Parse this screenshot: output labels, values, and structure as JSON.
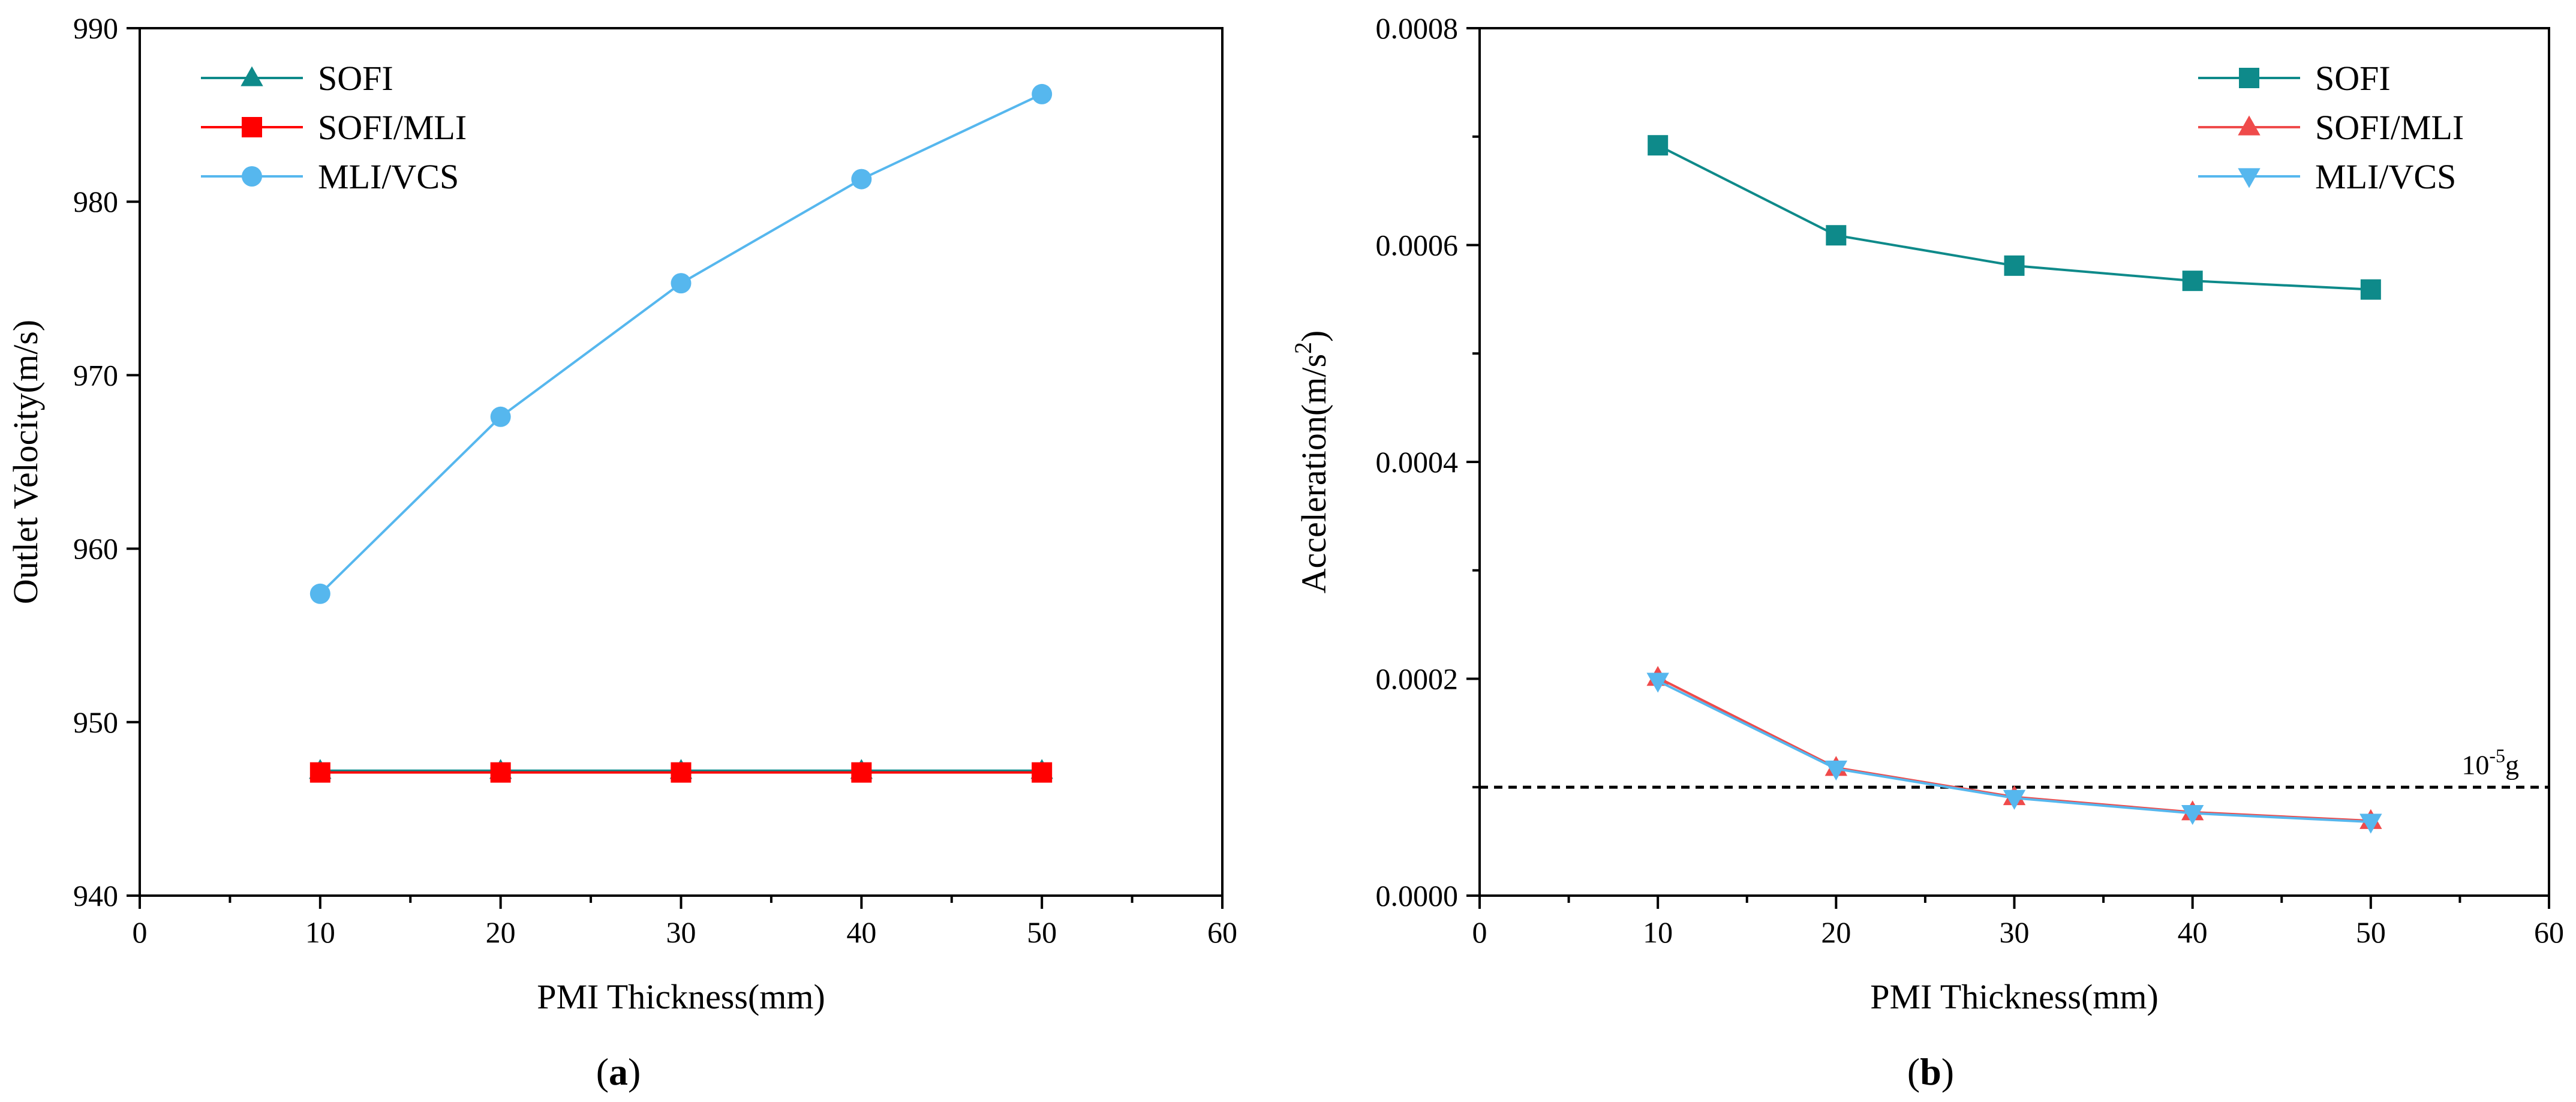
{
  "figure": {
    "panels": [
      {
        "caption_open": "(",
        "caption_letter": "a",
        "caption_close": ")"
      },
      {
        "caption_open": "(",
        "caption_letter": "b",
        "caption_close": ")"
      }
    ]
  },
  "colors": {
    "teal": "#0e8a8a",
    "red": "#ff0000",
    "light_red": "#ef4b4b",
    "light_blue": "#56b7ee",
    "axis": "#000000"
  },
  "chart_data": [
    {
      "type": "line",
      "panel": "a",
      "title": "",
      "xlabel": "PMI Thickness(mm)",
      "ylabel": "Outlet Velocity(m/s)",
      "xlim": [
        0,
        60
      ],
      "ylim": [
        940,
        990
      ],
      "xticks": [
        0,
        10,
        20,
        30,
        40,
        50,
        60
      ],
      "yticks": [
        940,
        950,
        960,
        970,
        980,
        990
      ],
      "grid": false,
      "legend_position": "top-left",
      "x": [
        10,
        20,
        30,
        40,
        50
      ],
      "series": [
        {
          "name": "SOFI",
          "marker": "triangle-up",
          "color": "#0e8a8a",
          "values": [
            947.2,
            947.2,
            947.2,
            947.2,
            947.2
          ]
        },
        {
          "name": "SOFI/MLI",
          "marker": "square",
          "color": "#ff0000",
          "values": [
            947.1,
            947.1,
            947.1,
            947.1,
            947.1
          ]
        },
        {
          "name": "MLI/VCS",
          "marker": "circle",
          "color": "#56b7ee",
          "values": [
            957.4,
            967.6,
            975.3,
            981.3,
            986.2
          ]
        }
      ]
    },
    {
      "type": "line",
      "panel": "b",
      "title": "",
      "xlabel": "PMI Thickness(mm)",
      "ylabel_main": "Acceleration(m/s",
      "ylabel_sup": "2",
      "ylabel_close": ")",
      "xlim": [
        0,
        60
      ],
      "ylim": [
        0,
        0.0008
      ],
      "xticks": [
        0,
        10,
        20,
        30,
        40,
        50,
        60
      ],
      "yticks": [
        "0.0000",
        "0.0002",
        "0.0004",
        "0.0006",
        "0.0008"
      ],
      "grid": false,
      "legend_position": "top-right",
      "x": [
        10,
        20,
        30,
        40,
        50
      ],
      "series": [
        {
          "name": "SOFI",
          "marker": "square",
          "color": "#0e8a8a",
          "values": [
            0.000692,
            0.000609,
            0.000581,
            0.000567,
            0.000559
          ]
        },
        {
          "name": "SOFI/MLI",
          "marker": "triangle-up",
          "color": "#ef4b4b",
          "values": [
            0.000201,
            0.000118,
            9.1e-05,
            7.7e-05,
            6.9e-05
          ]
        },
        {
          "name": "MLI/VCS",
          "marker": "triangle-down",
          "color": "#56b7ee",
          "values": [
            0.000198,
            0.000117,
            9e-05,
            7.6e-05,
            6.8e-05
          ]
        }
      ],
      "reference_line": {
        "value": 0.0001,
        "style": "dashed",
        "label_main": "10",
        "label_sup": "-5",
        "label_unit": "g"
      }
    }
  ]
}
